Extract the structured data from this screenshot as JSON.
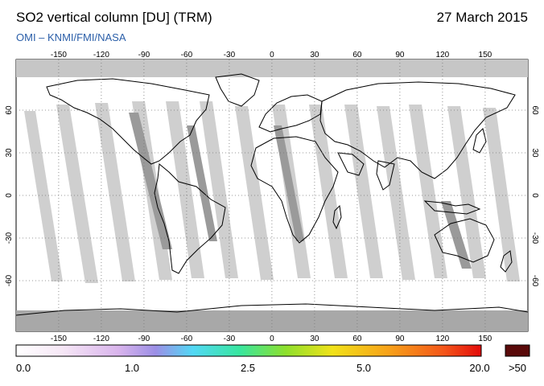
{
  "header": {
    "title": "SO2 vertical column [DU] (TRM)",
    "date": "27 March 2015",
    "source": "OMI  –  KNMI/FMI/NASA"
  },
  "map": {
    "lon_ticks_top": [
      "-150",
      "-120",
      "-90",
      "-60",
      "-30",
      "0",
      "30",
      "60",
      "90",
      "120",
      "150"
    ],
    "lon_ticks_bottom": [
      "-150",
      "-120",
      "-90",
      "-60",
      "-30",
      "0",
      "30",
      "60",
      "90",
      "120",
      "150"
    ],
    "lat_ticks_left": [
      "60",
      "30",
      "0",
      "-30",
      "-60"
    ],
    "lat_ticks_right": [
      "60",
      "30",
      "0",
      "-30",
      "-60"
    ],
    "colors": {
      "swath_gap": "#bdbdbd",
      "no_data": "#8c8c8c",
      "ocean": "#ffffff",
      "coast": "#000000"
    }
  },
  "colorbar": {
    "labels": [
      "0.0",
      "1.0",
      "2.5",
      "5.0",
      "20.0"
    ],
    "overflow_label": ">50",
    "overflow_color": "#5a0a0a"
  }
}
